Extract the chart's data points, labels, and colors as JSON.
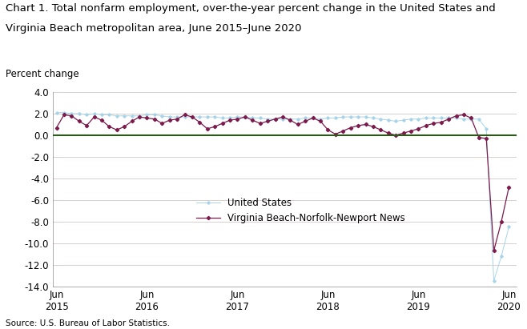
{
  "title_line1": "Chart 1. Total nonfarm employment, over-the-year percent change in the United States and",
  "title_line2": "Virginia Beach metropolitan area, June 2015–June 2020",
  "ylabel": "Percent change",
  "source": "Source: U.S. Bureau of Labor Statistics.",
  "ylim": [
    -14.0,
    4.0
  ],
  "yticks": [
    4.0,
    2.0,
    0.0,
    -2.0,
    -4.0,
    -6.0,
    -8.0,
    -10.0,
    -12.0,
    -14.0
  ],
  "xtick_labels": [
    "Jun\n2015",
    "Jun\n2016",
    "Jun\n2017",
    "Jun\n2018",
    "Jun\n2019",
    "Jun\n2020"
  ],
  "us_color": "#a8d4e8",
  "vb_color": "#7b1a4b",
  "zero_line_color": "#2d5a1b",
  "us_label": "United States",
  "vb_label": "Virginia Beach-Norfolk-Newport News",
  "us_data": [
    2.1,
    2.1,
    2.0,
    2.0,
    1.9,
    2.0,
    1.9,
    1.9,
    1.8,
    1.8,
    1.8,
    1.8,
    1.9,
    1.9,
    1.8,
    1.7,
    1.7,
    1.7,
    1.7,
    1.7,
    1.7,
    1.7,
    1.6,
    1.6,
    1.7,
    1.7,
    1.6,
    1.6,
    1.5,
    1.5,
    1.5,
    1.5,
    1.5,
    1.6,
    1.6,
    1.5,
    1.6,
    1.6,
    1.7,
    1.7,
    1.7,
    1.7,
    1.6,
    1.5,
    1.4,
    1.3,
    1.4,
    1.5,
    1.5,
    1.6,
    1.6,
    1.6,
    1.6,
    1.6,
    1.5,
    1.5,
    1.5,
    0.6,
    -13.5,
    -11.2,
    -8.5
  ],
  "vb_data": [
    0.7,
    1.9,
    1.8,
    1.3,
    0.9,
    1.7,
    1.4,
    0.8,
    0.5,
    0.8,
    1.3,
    1.7,
    1.6,
    1.5,
    1.1,
    1.4,
    1.5,
    1.9,
    1.7,
    1.2,
    0.6,
    0.8,
    1.1,
    1.4,
    1.5,
    1.7,
    1.4,
    1.1,
    1.3,
    1.5,
    1.7,
    1.4,
    1.0,
    1.3,
    1.6,
    1.3,
    0.5,
    0.1,
    0.4,
    0.7,
    0.9,
    1.0,
    0.8,
    0.5,
    0.2,
    0.0,
    0.2,
    0.4,
    0.6,
    0.9,
    1.1,
    1.2,
    1.5,
    1.8,
    1.9,
    1.6,
    -0.2,
    -0.3,
    -10.7,
    -8.0,
    -4.8
  ],
  "background_color": "#ffffff",
  "grid_color": "#d4c8c8",
  "title_fontsize": 9.5,
  "axis_fontsize": 8.5,
  "legend_fontsize": 8.5
}
